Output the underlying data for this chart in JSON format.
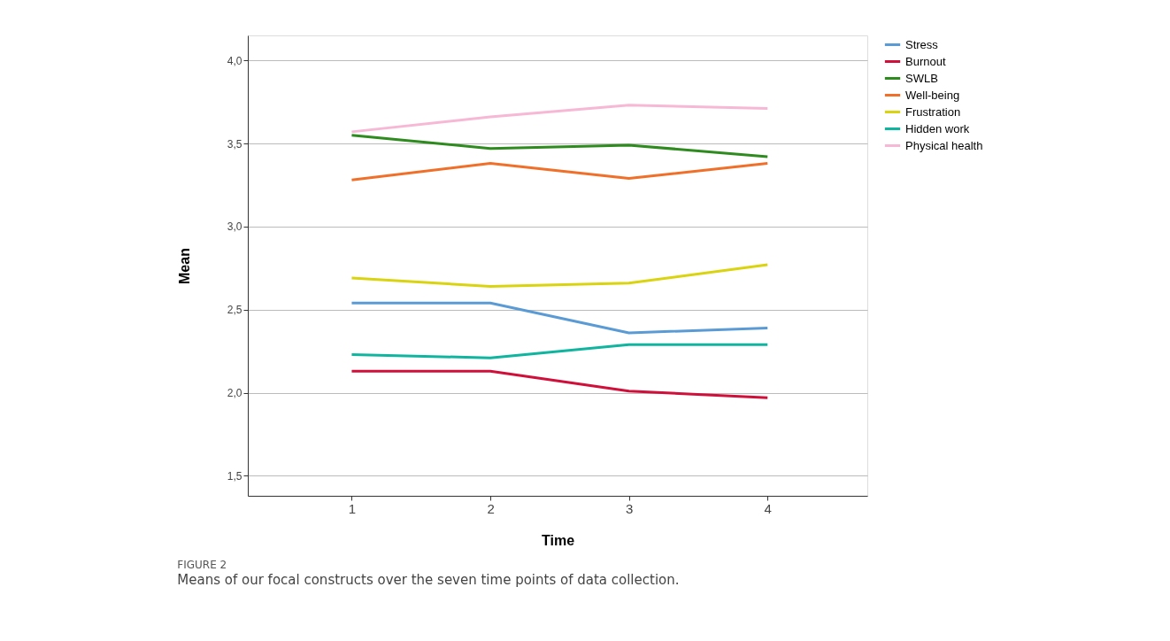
{
  "chart_data": {
    "type": "line",
    "xlabel": "Time",
    "ylabel": "Mean",
    "x": [
      1,
      2,
      3,
      4
    ],
    "series": [
      {
        "name": "Stress",
        "color": "#5b9bd5",
        "values": [
          2.54,
          2.54,
          2.36,
          2.39
        ]
      },
      {
        "name": "Burnout",
        "color": "#d0103a",
        "values": [
          2.13,
          2.13,
          2.01,
          1.97
        ]
      },
      {
        "name": "SWLB",
        "color": "#2e8b1e",
        "values": [
          3.55,
          3.47,
          3.49,
          3.42
        ]
      },
      {
        "name": "Well-being",
        "color": "#f0702a",
        "values": [
          3.28,
          3.38,
          3.29,
          3.38
        ]
      },
      {
        "name": "Frustration",
        "color": "#d9d40f",
        "values": [
          2.69,
          2.64,
          2.66,
          2.77
        ]
      },
      {
        "name": "Hidden work",
        "color": "#10b5a0",
        "values": [
          2.23,
          2.21,
          2.29,
          2.29
        ]
      },
      {
        "name": "Physical health",
        "color": "#f7b8d6",
        "values": [
          3.57,
          3.66,
          3.73,
          3.71
        ]
      }
    ],
    "xlim": [
      0.25,
      4.72
    ],
    "ylim": [
      1.38,
      4.15
    ],
    "xticks": [
      1,
      2,
      3,
      4
    ],
    "yticks": [
      {
        "value": 1.5,
        "label": "1,5"
      },
      {
        "value": 2.0,
        "label": "2,0"
      },
      {
        "value": 2.5,
        "label": "2,5"
      },
      {
        "value": 3.0,
        "label": "3,0"
      },
      {
        "value": 3.5,
        "label": "3,5"
      },
      {
        "value": 4.0,
        "label": "4,0"
      }
    ],
    "grid": "y",
    "legend": "top right",
    "marker": "none",
    "line_style": "solid",
    "annotations": [
      "FIGURE 2",
      "Means of our focal constructs over the seven time points of data collection."
    ]
  }
}
